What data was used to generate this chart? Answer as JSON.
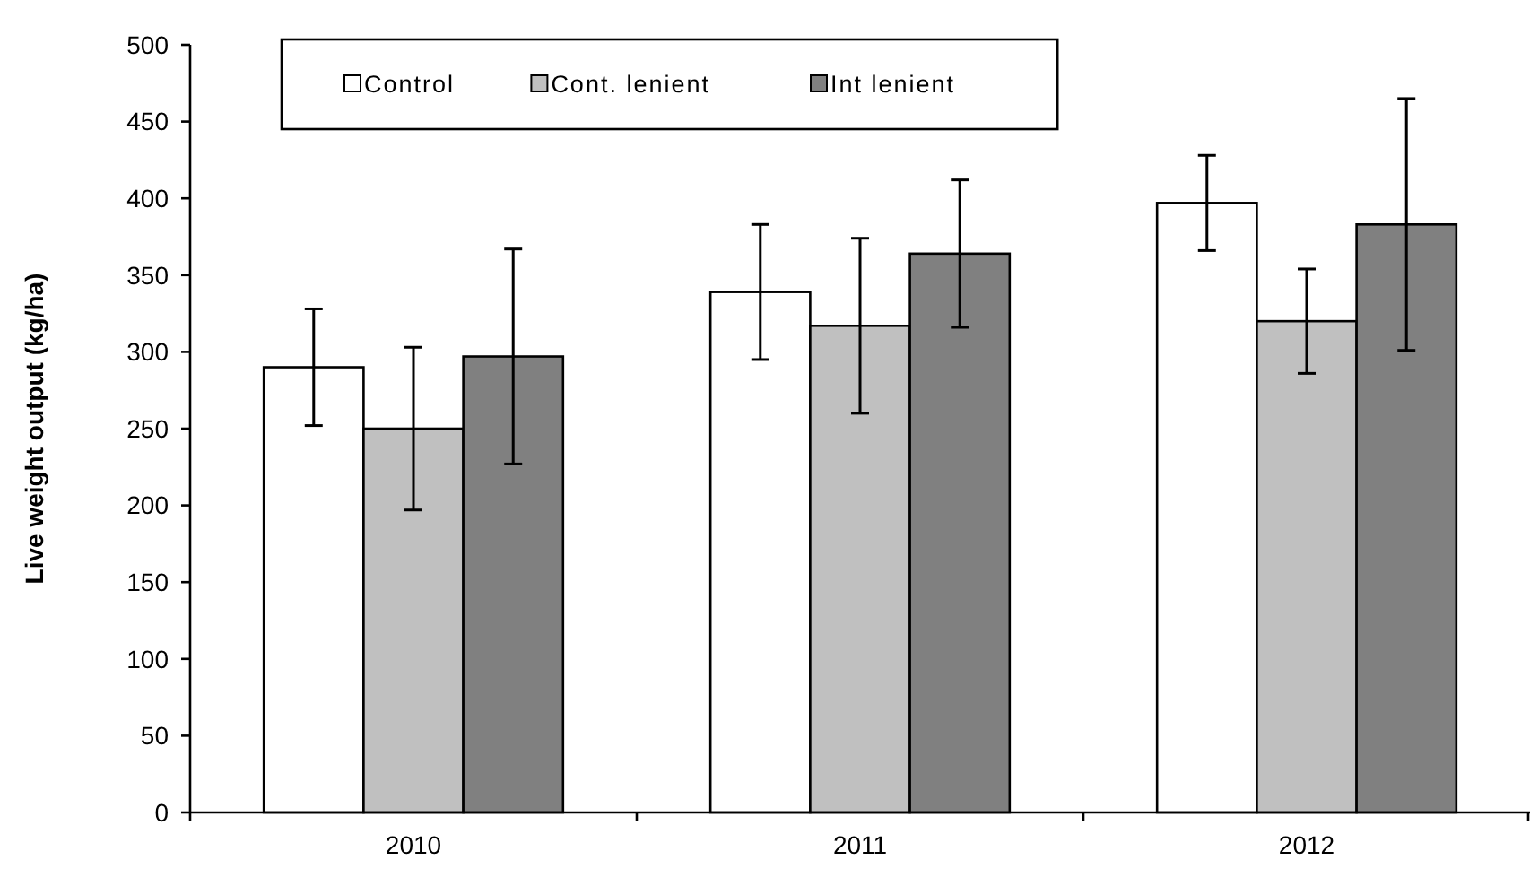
{
  "chart_data": {
    "type": "bar",
    "ylabel": "Live weight output (kg/ha)",
    "categories": [
      "2010",
      "2011",
      "2012"
    ],
    "series": [
      {
        "name": "Control",
        "color": "#ffffff",
        "values": [
          290,
          339,
          397
        ],
        "errors": [
          38,
          44,
          31
        ]
      },
      {
        "name": "Cont. lenient",
        "color": "#c0c0c0",
        "values": [
          250,
          317,
          320
        ],
        "errors": [
          53,
          57,
          34
        ]
      },
      {
        "name": "Int lenient",
        "color": "#808080",
        "values": [
          297,
          364,
          383
        ],
        "errors": [
          70,
          48,
          82
        ]
      }
    ],
    "ylim": [
      0,
      500
    ],
    "yticks": [
      0,
      50,
      100,
      150,
      200,
      250,
      300,
      350,
      400,
      450,
      500
    ],
    "legend": "top left"
  }
}
